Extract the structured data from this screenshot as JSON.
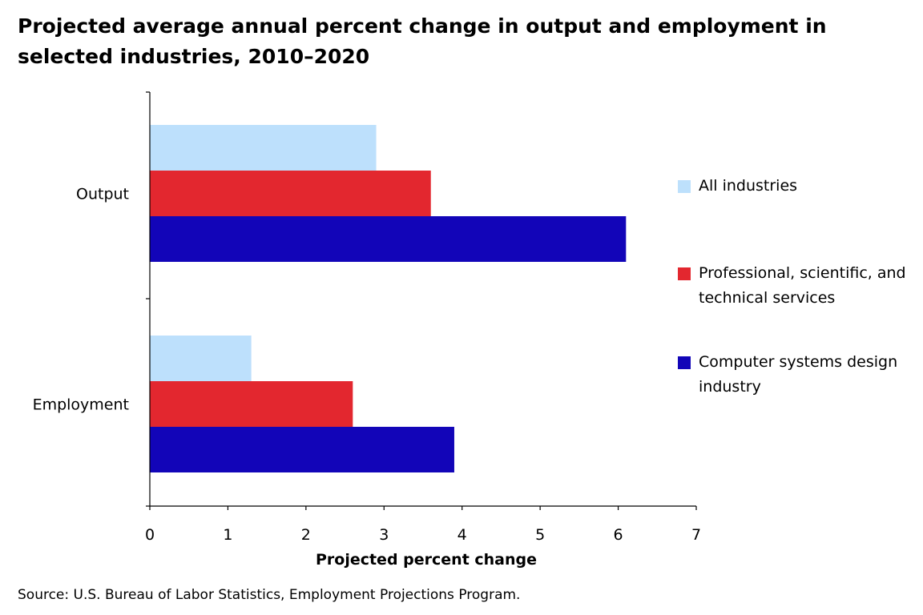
{
  "chart_data": {
    "type": "bar",
    "orientation": "horizontal",
    "title": "Projected average annual percent change in output and employment  in selected industries, 2010–2020",
    "categories": [
      "Output",
      "Employment"
    ],
    "series": [
      {
        "name": "All industries",
        "color": "#bde0fc",
        "values": [
          2.9,
          1.3
        ]
      },
      {
        "name": "Professional, scientific, and technical services",
        "color": "#e3272f",
        "values": [
          3.6,
          2.6
        ]
      },
      {
        "name": "Computer systems design industry",
        "color": "#1205b8",
        "values": [
          6.1,
          3.9
        ]
      }
    ],
    "xlabel": "Projected percent change",
    "ylabel": "",
    "xlim": [
      0,
      7
    ],
    "xticks": [
      "0",
      "1",
      "2",
      "3",
      "4",
      "5",
      "6",
      "7"
    ],
    "grid": false,
    "legend_position": "right",
    "source": "Source: U.S. Bureau of Labor Statistics, Employment Projections Program."
  }
}
